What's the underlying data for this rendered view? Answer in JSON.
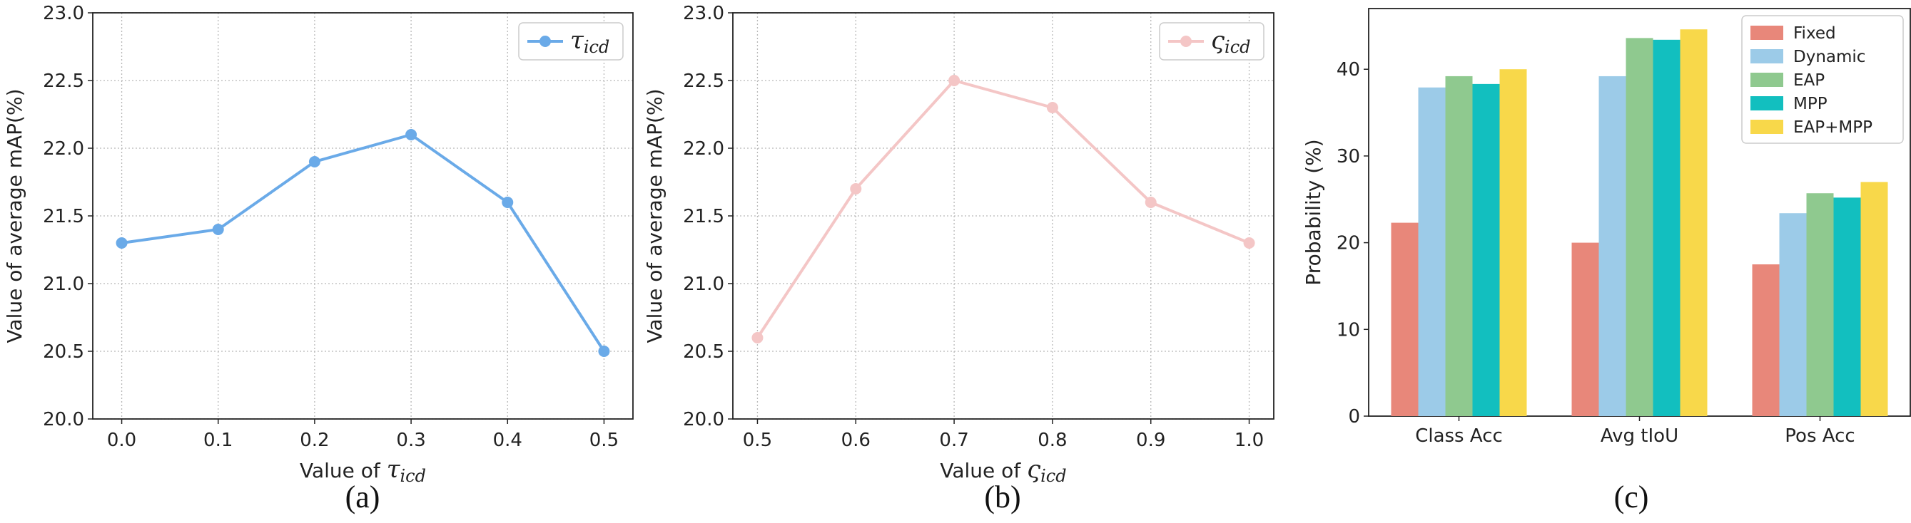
{
  "chart_data": [
    {
      "type": "line",
      "caption": "(a)",
      "x": [
        0.0,
        0.1,
        0.2,
        0.3,
        0.4,
        0.5
      ],
      "xticks": [
        "0.0",
        "0.1",
        "0.2",
        "0.3",
        "0.4",
        "0.5"
      ],
      "xlim": [
        -0.03,
        0.53
      ],
      "ylim": [
        20.0,
        23.0
      ],
      "yticks": [
        "20.0",
        "20.5",
        "21.0",
        "21.5",
        "22.0",
        "22.5",
        "23.0"
      ],
      "ylabel": "Value of average mAP(%)",
      "xlabel_prefix": "Value of ",
      "xlabel_symbol": "τ",
      "xlabel_sub": "icd",
      "grid": true,
      "legend_position": "top-right",
      "series": [
        {
          "name_symbol": "τ",
          "name_sub": "icd",
          "color": "#6aaae8",
          "values": [
            21.3,
            21.4,
            21.9,
            22.1,
            21.6,
            20.5
          ]
        }
      ]
    },
    {
      "type": "line",
      "caption": "(b)",
      "x": [
        0.5,
        0.6,
        0.7,
        0.8,
        0.9,
        1.0
      ],
      "xticks": [
        "0.5",
        "0.6",
        "0.7",
        "0.8",
        "0.9",
        "1.0"
      ],
      "xlim": [
        0.475,
        1.025
      ],
      "ylim": [
        20.0,
        23.0
      ],
      "yticks": [
        "20.0",
        "20.5",
        "21.0",
        "21.5",
        "22.0",
        "22.5",
        "23.0"
      ],
      "ylabel": "Value of average mAP(%)",
      "xlabel_prefix": "Value of ",
      "xlabel_symbol": "ς",
      "xlabel_sub": "icd",
      "grid": true,
      "legend_position": "top-right",
      "series": [
        {
          "name_symbol": "ς",
          "name_sub": "icd",
          "color": "#f4c6c6",
          "values": [
            20.6,
            21.7,
            22.5,
            22.3,
            21.6,
            21.3
          ]
        }
      ]
    },
    {
      "type": "bar",
      "caption": "(c)",
      "categories": [
        "Class Acc",
        "Avg tIoU",
        "Pos Acc"
      ],
      "ylim": [
        0,
        47
      ],
      "yticks": [
        "0",
        "10",
        "20",
        "30",
        "40"
      ],
      "ylabel": "Probability (%)",
      "grid": false,
      "legend_position": "top-right",
      "series": [
        {
          "name": "Fixed",
          "color": "#e8877a",
          "values": [
            22.3,
            20.0,
            17.5
          ]
        },
        {
          "name": "Dynamic",
          "color": "#9ccbe8",
          "values": [
            37.9,
            39.2,
            23.4
          ]
        },
        {
          "name": "EAP",
          "color": "#8fc98f",
          "values": [
            39.2,
            43.6,
            25.7
          ]
        },
        {
          "name": "MPP",
          "color": "#12bfbf",
          "values": [
            38.3,
            43.4,
            25.2
          ]
        },
        {
          "name": "EAP+MPP",
          "color": "#f8d84a",
          "values": [
            40.0,
            44.6,
            27.0
          ]
        }
      ]
    }
  ]
}
